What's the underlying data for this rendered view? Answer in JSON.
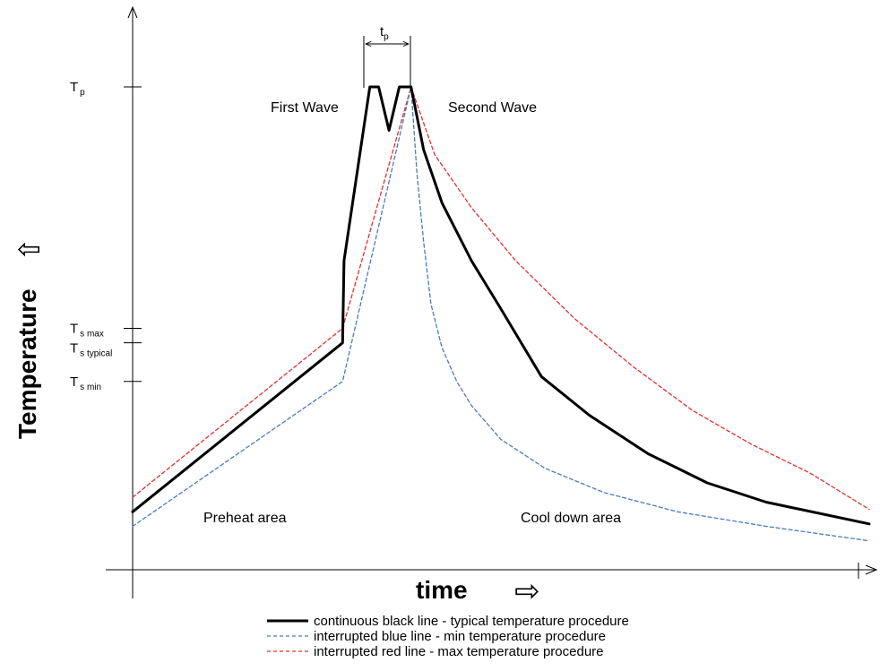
{
  "chart_data": {
    "type": "line",
    "title": "",
    "xlabel": "time",
    "ylabel": "Temperature",
    "x_axis_arrow": "⇨",
    "y_axis_arrow": "⇧",
    "grid": false,
    "legend_position": "bottom-center",
    "y_ticks": [
      {
        "main": "T",
        "sub": "p",
        "value": 100
      },
      {
        "main": "T",
        "sub": "s max",
        "value": 50
      },
      {
        "main": "T",
        "sub": "s typical",
        "value": 47
      },
      {
        "main": "T",
        "sub": "s min",
        "value": 39
      }
    ],
    "duration_label": {
      "main": "t",
      "sub": "p"
    },
    "annotations": {
      "first_wave": "First Wave",
      "second_wave": "Second Wave",
      "preheat": "Preheat area",
      "cool_down": "Cool down area"
    },
    "series": [
      {
        "name": "continuous black line - typical temperature procedure",
        "color": "#000000",
        "style": "solid",
        "points": [
          [
            0,
            12
          ],
          [
            28.5,
            47
          ],
          [
            28.7,
            64
          ],
          [
            32.2,
            100
          ],
          [
            33.4,
            100
          ],
          [
            34.8,
            91
          ],
          [
            36.2,
            100
          ],
          [
            37.8,
            100
          ],
          [
            39.5,
            87
          ],
          [
            42,
            76
          ],
          [
            46,
            64
          ],
          [
            50,
            54
          ],
          [
            55.5,
            40
          ],
          [
            62,
            32
          ],
          [
            70,
            24
          ],
          [
            78,
            18
          ],
          [
            86,
            14
          ],
          [
            100,
            9.5
          ]
        ]
      },
      {
        "name": "interrupted blue line - min temperature procedure",
        "color": "#4a7ac0",
        "style": "dashed",
        "points": [
          [
            0,
            9
          ],
          [
            28.5,
            39
          ],
          [
            37.8,
            100
          ],
          [
            38.6,
            82
          ],
          [
            39.5,
            68
          ],
          [
            40.5,
            55
          ],
          [
            42,
            46
          ],
          [
            44,
            39
          ],
          [
            46,
            34
          ],
          [
            50,
            27
          ],
          [
            56,
            21
          ],
          [
            64,
            16
          ],
          [
            74,
            12
          ],
          [
            86,
            9
          ],
          [
            100,
            6
          ]
        ]
      },
      {
        "name": "interrupted red line - max temperature procedure",
        "color": "#e03030",
        "style": "dashed",
        "points": [
          [
            0,
            15
          ],
          [
            28.5,
            50
          ],
          [
            37.8,
            100
          ],
          [
            41,
            86
          ],
          [
            46,
            75
          ],
          [
            52,
            64
          ],
          [
            60,
            52
          ],
          [
            68,
            42
          ],
          [
            76,
            33
          ],
          [
            84,
            26
          ],
          [
            92,
            20
          ],
          [
            100,
            12.5
          ]
        ]
      }
    ]
  },
  "legend": {
    "items": [
      {
        "label": "continuous black line - typical temperature procedure",
        "color": "#000000",
        "style": "solid"
      },
      {
        "label": "interrupted blue line - min temperature procedure",
        "color": "#4a7ac0",
        "style": "dashed"
      },
      {
        "label": "interrupted red line  - max temperature procedure",
        "color": "#e03030",
        "style": "dashed"
      }
    ]
  }
}
